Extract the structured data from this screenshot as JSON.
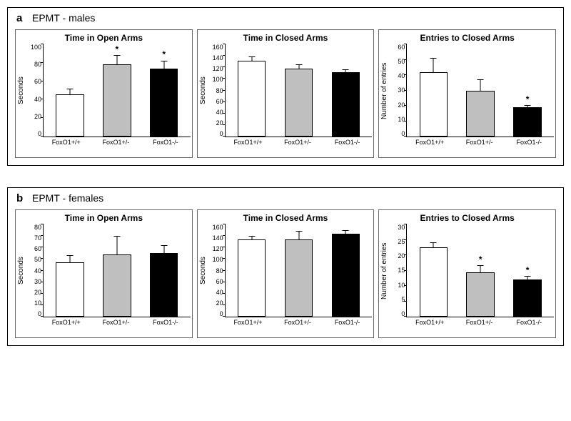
{
  "panels": [
    {
      "letter": "a",
      "title": "EPMT - males",
      "charts": [
        {
          "title": "Time in Open Arms",
          "ylabel": "Seconds",
          "ymax": 100,
          "ytick_step": 20,
          "categories": [
            "FoxO1+/+",
            "FoxO1+/-",
            "FoxO1-/-"
          ],
          "values": [
            46,
            78,
            74
          ],
          "errors": [
            7,
            11,
            9
          ],
          "stars": [
            false,
            true,
            true
          ],
          "bar_colors": [
            "#ffffff",
            "#bfbfbf",
            "#000000"
          ]
        },
        {
          "title": "Time in Closed Arms",
          "ylabel": "Seconds",
          "ymax": 160,
          "ytick_step": 20,
          "categories": [
            "FoxO1+/+",
            "FoxO1+/-",
            "FoxO1-/-"
          ],
          "values": [
            132,
            118,
            112
          ],
          "errors": [
            8,
            9,
            6
          ],
          "stars": [
            false,
            false,
            false
          ],
          "bar_colors": [
            "#ffffff",
            "#bfbfbf",
            "#000000"
          ]
        },
        {
          "title": "Entries to Closed Arms",
          "ylabel": "Number of entries",
          "ymax": 60,
          "ytick_step": 10,
          "categories": [
            "FoxO1+/+",
            "FoxO1+/-",
            "FoxO1-/-"
          ],
          "values": [
            42,
            30,
            19
          ],
          "errors": [
            10,
            8,
            2
          ],
          "stars": [
            false,
            false,
            true
          ],
          "bar_colors": [
            "#ffffff",
            "#bfbfbf",
            "#000000"
          ]
        }
      ]
    },
    {
      "letter": "b",
      "title": "EPMT - females",
      "charts": [
        {
          "title": "Time in Open Arms",
          "ylabel": "Seconds",
          "ymax": 80,
          "ytick_step": 10,
          "categories": [
            "FoxO1+/+",
            "FoxO1+/-",
            "FoxO1-/-"
          ],
          "values": [
            47,
            54,
            55
          ],
          "errors": [
            7,
            17,
            8
          ],
          "stars": [
            false,
            false,
            false
          ],
          "bar_colors": [
            "#ffffff",
            "#bfbfbf",
            "#000000"
          ]
        },
        {
          "title": "Time in Closed Arms",
          "ylabel": "Seconds",
          "ymax": 160,
          "ytick_step": 20,
          "categories": [
            "FoxO1+/+",
            "FoxO1+/-",
            "FoxO1-/-"
          ],
          "values": [
            134,
            134,
            144
          ],
          "errors": [
            8,
            16,
            8
          ],
          "stars": [
            false,
            false,
            false
          ],
          "bar_colors": [
            "#ffffff",
            "#bfbfbf",
            "#000000"
          ]
        },
        {
          "title": "Entries to Closed Arms",
          "ylabel": "Number of entries",
          "ymax": 30,
          "ytick_step": 5,
          "categories": [
            "FoxO1+/+",
            "FoxO1+/-",
            "FoxO1-/-"
          ],
          "values": [
            22.5,
            14.5,
            12
          ],
          "errors": [
            2,
            2.5,
            1.5
          ],
          "stars": [
            false,
            true,
            true
          ],
          "bar_colors": [
            "#ffffff",
            "#bfbfbf",
            "#000000"
          ]
        }
      ]
    }
  ],
  "style": {
    "background": "#ffffff",
    "border_color": "#000000",
    "font": "Arial",
    "title_fontsize": 12,
    "tick_fontsize": 9,
    "bar_border": "#000000"
  }
}
